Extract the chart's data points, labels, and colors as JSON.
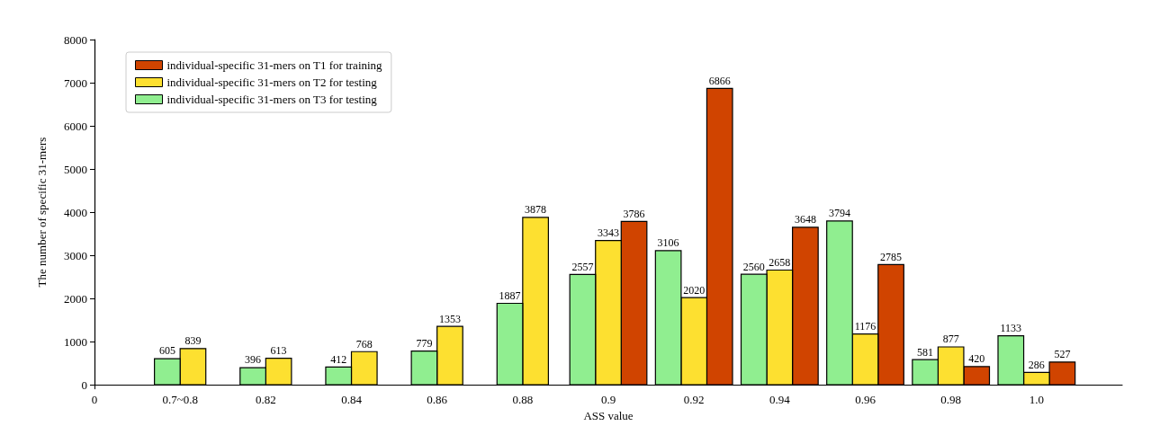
{
  "chart_data": {
    "type": "bar",
    "xlabel": "ASS value",
    "ylabel": "The number of specific 31-mers",
    "categories": [
      "0",
      "0.7~0.8",
      "0.82",
      "0.84",
      "0.86",
      "0.88",
      "0.9",
      "0.92",
      "0.94",
      "0.96",
      "0.98",
      "1.0",
      null
    ],
    "series": [
      {
        "name": "individual-specific 31-mers on T1 for training",
        "color": "#d04400",
        "values": [
          null,
          null,
          null,
          null,
          null,
          null,
          3786,
          6866,
          3648,
          2785,
          420,
          527,
          null
        ]
      },
      {
        "name": "individual-specific 31-mers on T2 for testing",
        "color": "#fde030",
        "values": [
          null,
          839,
          613,
          768,
          1353,
          3878,
          3343,
          2020,
          2658,
          1176,
          877,
          286,
          null
        ]
      },
      {
        "name": "individual-specific 31-mers on T3 for testing",
        "color": "#90ee90",
        "values": [
          null,
          605,
          396,
          412,
          779,
          1887,
          2557,
          3106,
          2560,
          3794,
          581,
          1133,
          null
        ]
      }
    ],
    "ylim": [
      0,
      8000
    ],
    "yticks": [
      0,
      1000,
      2000,
      3000,
      4000,
      5000,
      6000,
      7000,
      8000
    ],
    "grid": false,
    "legend": "top left",
    "data_labels": true
  }
}
